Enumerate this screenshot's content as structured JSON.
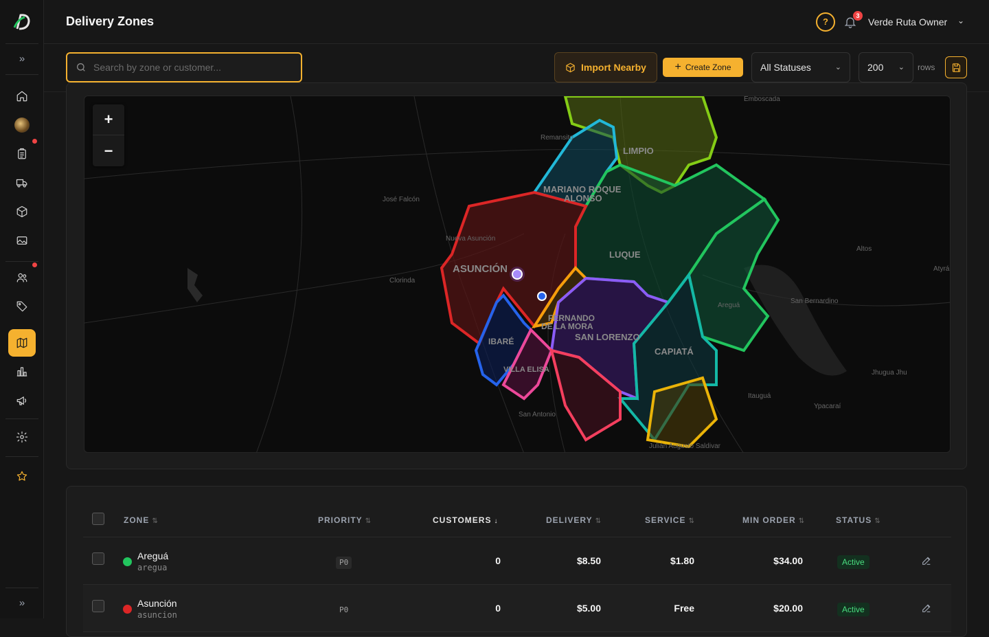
{
  "header": {
    "title": "Delivery Zones",
    "user_name": "Verde Ruta Owner",
    "notification_count": "3",
    "help_icon": "help-circle-icon"
  },
  "sidebar": {
    "icons": [
      "expand-icon",
      "home-icon",
      "avatar",
      "clipboard-icon",
      "truck-icon",
      "box-icon",
      "image-icon",
      "users-icon",
      "tag-icon",
      "map-icon",
      "chart-icon",
      "megaphone-icon",
      "gear-icon",
      "star-icon",
      "collapse-icon"
    ],
    "active": "map-icon"
  },
  "toolbar": {
    "search_placeholder": "Search by zone or customer...",
    "import_label": "Import Nearby",
    "create_label": "Create Zone",
    "status_value": "All Statuses",
    "rows_value": "200",
    "rows_label": "rows"
  },
  "map": {
    "zoom_in": "+",
    "zoom_out": "−",
    "zone_labels": [
      "LIMPIO",
      "MARIANO ROQUE",
      "ALONSO",
      "LUQUE",
      "ASUNCIÓN",
      "FERNANDO",
      "DE LA MORA",
      "SAN LORENZO",
      "IBARÉ",
      "VILLA ELISA",
      "CAPIATÁ"
    ],
    "place_labels": [
      "Emboscada",
      "Remansito",
      "José Falcón",
      "Nueva Asunción",
      "Clorinda",
      "Areguá",
      "Altos",
      "San Bernardino",
      "Atyrá",
      "Itauguá",
      "Ypacaraí",
      "Jhugua Jhu",
      "San Antonio",
      "Julián Augusto Saldivar"
    ]
  },
  "table": {
    "headers": {
      "zone": "ZONE",
      "priority": "PRIORITY",
      "customers": "CUSTOMERS",
      "delivery": "DELIVERY",
      "service": "SERVICE",
      "min_order": "MIN ORDER",
      "status": "STATUS"
    },
    "sort_neutral": "⇅",
    "sort_desc": "↓",
    "rows": [
      {
        "name": "Areguá",
        "slug": "aregua",
        "priority": "P0",
        "customers": "0",
        "delivery": "$8.50",
        "service": "$1.80",
        "min_order": "$34.00",
        "status": "Active",
        "color": "#22c55e"
      },
      {
        "name": "Asunción",
        "slug": "asuncion",
        "priority": "P0",
        "customers": "0",
        "delivery": "$5.00",
        "service": "Free",
        "min_order": "$20.00",
        "status": "Active",
        "color": "#dc2626"
      }
    ]
  },
  "colors": {
    "accent": "#f5b12f",
    "active_status": "#4ade80"
  }
}
